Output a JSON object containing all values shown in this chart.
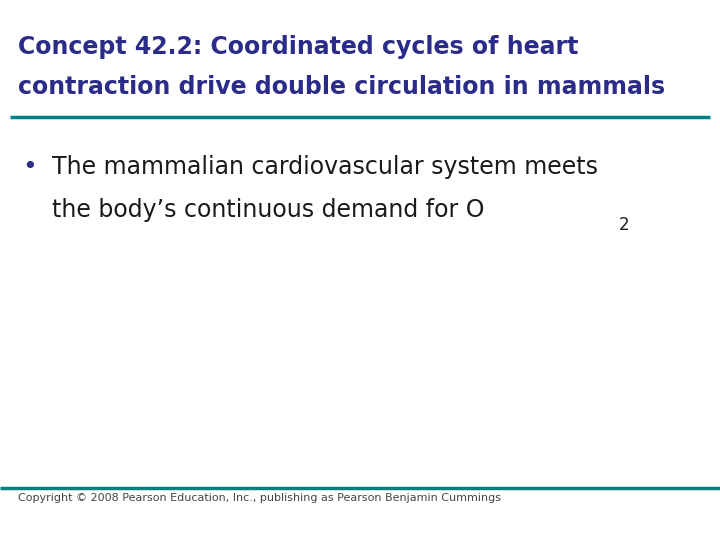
{
  "title_line1": "Concept 42.2: Coordinated cycles of heart",
  "title_line2": "contraction drive double circulation in mammals",
  "title_color": "#2B2B8A",
  "title_fontsize": 17,
  "divider_color": "#008080",
  "bullet_text_line1": "The mammalian cardiovascular system meets",
  "bullet_text_line2": "the body’s continuous demand for O",
  "bullet_subscript": "2",
  "bullet_color": "#1a1a1a",
  "bullet_fontsize": 17,
  "bullet_dot_color": "#2B2B8A",
  "copyright_text": "Copyright © 2008 Pearson Education, Inc., publishing as Pearson Benjamin Cummings",
  "copyright_fontsize": 8,
  "copyright_color": "#444444",
  "background_color": "#FFFFFF"
}
